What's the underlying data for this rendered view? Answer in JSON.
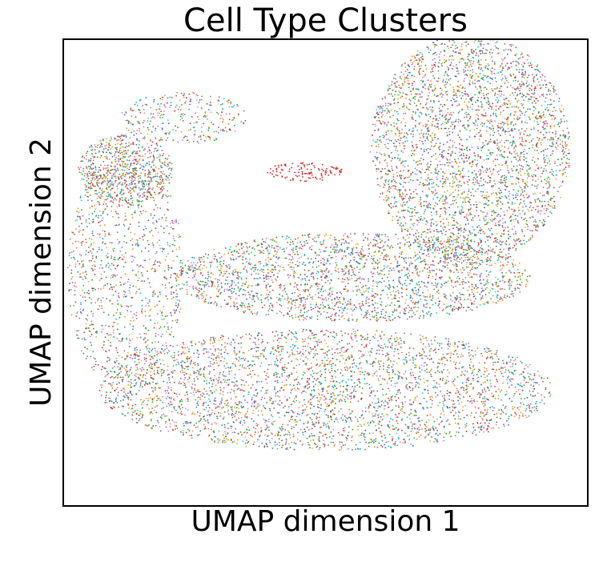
{
  "chart_data": {
    "type": "scatter",
    "title": "Cell Type Clusters",
    "xlabel": "UMAP dimension 1",
    "ylabel": "UMAP dimension 2",
    "xlim": [
      0,
      10
    ],
    "ylim": [
      0,
      10
    ],
    "ticks": "none",
    "grid": false,
    "legend": "none",
    "point_colors": [
      "#1f77b4",
      "#ff7f0e",
      "#2ca02c",
      "#d62728",
      "#9467bd",
      "#8c564b",
      "#e377c2",
      "#7f7f7f",
      "#bcbd22",
      "#17becf"
    ],
    "regions": [
      {
        "cx": 7.75,
        "cy": 7.65,
        "rx": 1.9,
        "ry": 2.45,
        "count": 3300
      },
      {
        "cx": 5.5,
        "cy": 4.9,
        "rx": 3.4,
        "ry": 0.95,
        "count": 2300
      },
      {
        "cx": 5.0,
        "cy": 2.5,
        "rx": 4.3,
        "ry": 1.3,
        "count": 3300
      },
      {
        "cx": 1.2,
        "cy": 5.0,
        "rx": 1.1,
        "ry": 2.6,
        "count": 1100
      },
      {
        "cx": 1.2,
        "cy": 7.2,
        "rx": 0.9,
        "ry": 0.75,
        "count": 700
      },
      {
        "cx": 2.3,
        "cy": 8.3,
        "rx": 1.2,
        "ry": 0.55,
        "count": 300
      },
      {
        "cx": 4.6,
        "cy": 7.15,
        "rx": 0.75,
        "ry": 0.2,
        "count": 120
      }
    ]
  }
}
